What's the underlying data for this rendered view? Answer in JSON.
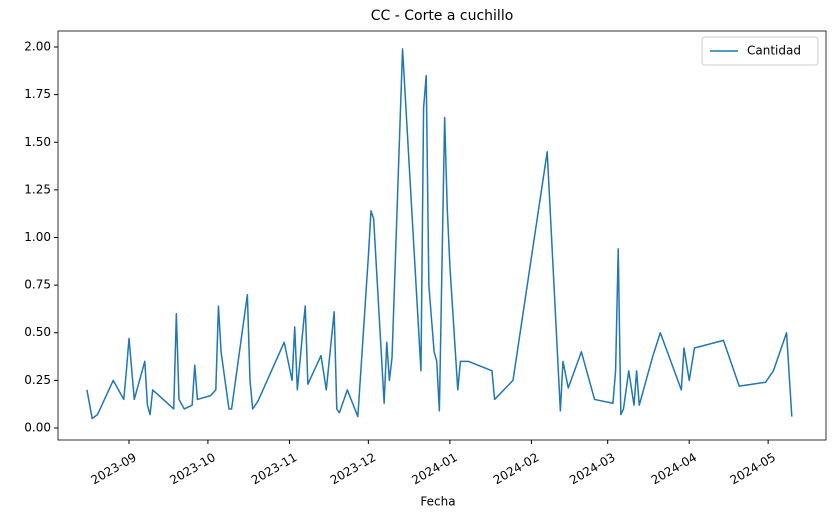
{
  "chart_data": {
    "type": "line",
    "title": "CC - Corte a cuchillo",
    "x_label": "Fecha",
    "x": [
      "2023-08-16",
      "2023-08-18",
      "2023-08-20",
      "2023-08-26",
      "2023-08-30",
      "2023-08-31",
      "2023-09-01",
      "2023-09-03",
      "2023-09-07",
      "2023-09-08",
      "2023-09-09",
      "2023-09-10",
      "2023-09-18",
      "2023-09-19",
      "2023-09-20",
      "2023-09-22",
      "2023-09-25",
      "2023-09-26",
      "2023-09-27",
      "2023-10-02",
      "2023-10-04",
      "2023-10-05",
      "2023-10-06",
      "2023-10-09",
      "2023-10-10",
      "2023-10-16",
      "2023-10-17",
      "2023-10-18",
      "2023-10-20",
      "2023-10-30",
      "2023-11-02",
      "2023-11-03",
      "2023-11-04",
      "2023-11-06",
      "2023-11-07",
      "2023-11-08",
      "2023-11-13",
      "2023-11-15",
      "2023-11-18",
      "2023-11-19",
      "2023-11-20",
      "2023-11-23",
      "2023-11-27",
      "2023-12-01",
      "2023-12-02",
      "2023-12-03",
      "2023-12-07",
      "2023-12-08",
      "2023-12-09",
      "2023-12-10",
      "2023-12-14",
      "2023-12-21",
      "2023-12-22",
      "2023-12-23",
      "2023-12-24",
      "2023-12-26",
      "2023-12-27",
      "2023-12-28",
      "2023-12-30",
      "2023-12-31",
      "2024-01-01",
      "2024-01-04",
      "2024-01-05",
      "2024-01-08",
      "2024-01-17",
      "2024-01-18",
      "2024-01-25",
      "2024-02-07",
      "2024-02-12",
      "2024-02-13",
      "2024-02-15",
      "2024-02-20",
      "2024-02-25",
      "2024-03-03",
      "2024-03-04",
      "2024-03-05",
      "2024-03-06",
      "2024-03-07",
      "2024-03-09",
      "2024-03-11",
      "2024-03-12",
      "2024-03-13",
      "2024-03-18",
      "2024-03-21",
      "2024-03-29",
      "2024-03-30",
      "2024-04-01",
      "2024-04-03",
      "2024-04-14",
      "2024-04-20",
      "2024-04-30",
      "2024-05-03",
      "2024-05-08",
      "2024-05-10"
    ],
    "series": [
      {
        "name": "Cantidad",
        "color": "#1f77b4",
        "values": [
          0.2,
          0.05,
          0.07,
          0.25,
          0.15,
          0.3,
          0.47,
          0.15,
          0.35,
          0.12,
          0.07,
          0.2,
          0.1,
          0.6,
          0.15,
          0.1,
          0.12,
          0.33,
          0.15,
          0.17,
          0.2,
          0.64,
          0.4,
          0.1,
          0.1,
          0.7,
          0.25,
          0.1,
          0.14,
          0.45,
          0.25,
          0.53,
          0.2,
          0.5,
          0.64,
          0.23,
          0.38,
          0.2,
          0.61,
          0.1,
          0.08,
          0.2,
          0.06,
          0.9,
          1.14,
          1.1,
          0.13,
          0.45,
          0.25,
          0.37,
          1.99,
          0.3,
          1.68,
          1.85,
          0.75,
          0.4,
          0.35,
          0.09,
          1.63,
          1.15,
          0.85,
          0.2,
          0.35,
          0.35,
          0.3,
          0.15,
          0.25,
          1.45,
          0.09,
          0.35,
          0.21,
          0.4,
          0.15,
          0.13,
          0.3,
          0.94,
          0.07,
          0.1,
          0.3,
          0.12,
          0.3,
          0.12,
          0.37,
          0.5,
          0.2,
          0.42,
          0.25,
          0.42,
          0.46,
          0.22,
          0.24,
          0.3,
          0.5,
          0.06
        ]
      }
    ],
    "xlim": [
      "2023-08-05",
      "2024-05-23"
    ],
    "xticks": [
      {
        "value": "2023-09-01",
        "label": "2023-09"
      },
      {
        "value": "2023-10-01",
        "label": "2023-10"
      },
      {
        "value": "2023-11-01",
        "label": "2023-11"
      },
      {
        "value": "2023-12-01",
        "label": "2023-12"
      },
      {
        "value": "2024-01-01",
        "label": "2024-01"
      },
      {
        "value": "2024-02-01",
        "label": "2024-02"
      },
      {
        "value": "2024-03-01",
        "label": "2024-03"
      },
      {
        "value": "2024-04-01",
        "label": "2024-04"
      },
      {
        "value": "2024-05-01",
        "label": "2024-05"
      }
    ],
    "ylim": [
      -0.063,
      2.084
    ],
    "yticks": [
      {
        "value": 0,
        "label": "0.00"
      },
      {
        "value": 0.25,
        "label": "0.25"
      },
      {
        "value": 0.5,
        "label": "0.50"
      },
      {
        "value": 0.75,
        "label": "0.75"
      },
      {
        "value": 1,
        "label": "1.00"
      },
      {
        "value": 1.25,
        "label": "1.25"
      },
      {
        "value": 1.5,
        "label": "1.50"
      },
      {
        "value": 1.75,
        "label": "1.75"
      },
      {
        "value": 2,
        "label": "2.00"
      }
    ],
    "grid": false,
    "legend": "upper right"
  }
}
